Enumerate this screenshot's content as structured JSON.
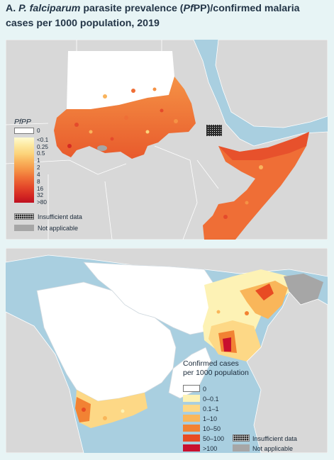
{
  "heading": {
    "prefix": "A.",
    "species": "P. falciparum",
    "rest": "parasite prevalence (",
    "pf": "Pf",
    "rest2": "PP)/confirmed malaria cases per 1000 population, 2019"
  },
  "map_a": {
    "legend_title": "PfPP",
    "ticks": [
      "0",
      "<0.1",
      "0.25",
      "0.5",
      "1",
      "2",
      "4",
      "8",
      "16",
      "32",
      ">80"
    ],
    "insufficient_label": "Insufficient data",
    "not_applicable_label": "Not applicable"
  },
  "map_b": {
    "legend_title_line1": "Confirmed cases",
    "legend_title_line2": "per 1000 population",
    "categories": [
      "0",
      "0–0.1",
      "0.1–1",
      "1–10",
      "10–50",
      "50–100",
      ">100"
    ],
    "insufficient_label": "Insufficient data",
    "not_applicable_label": "Not applicable"
  },
  "colors": {
    "sea": "#a9cfe0",
    "land": "#d8d8d8",
    "zero": "#ffffff",
    "scale_a": [
      "#fffbd0",
      "#fde9a0",
      "#fcd37a",
      "#f9b35c",
      "#f59245",
      "#ef6e36",
      "#e54a2b",
      "#d62a23",
      "#bf1020"
    ],
    "scale_b": [
      "#ffffff",
      "#fdf2b5",
      "#fdd886",
      "#f9b65a",
      "#f28233",
      "#e84b23",
      "#c8102e"
    ],
    "not_applicable": "#a6a6a6"
  }
}
